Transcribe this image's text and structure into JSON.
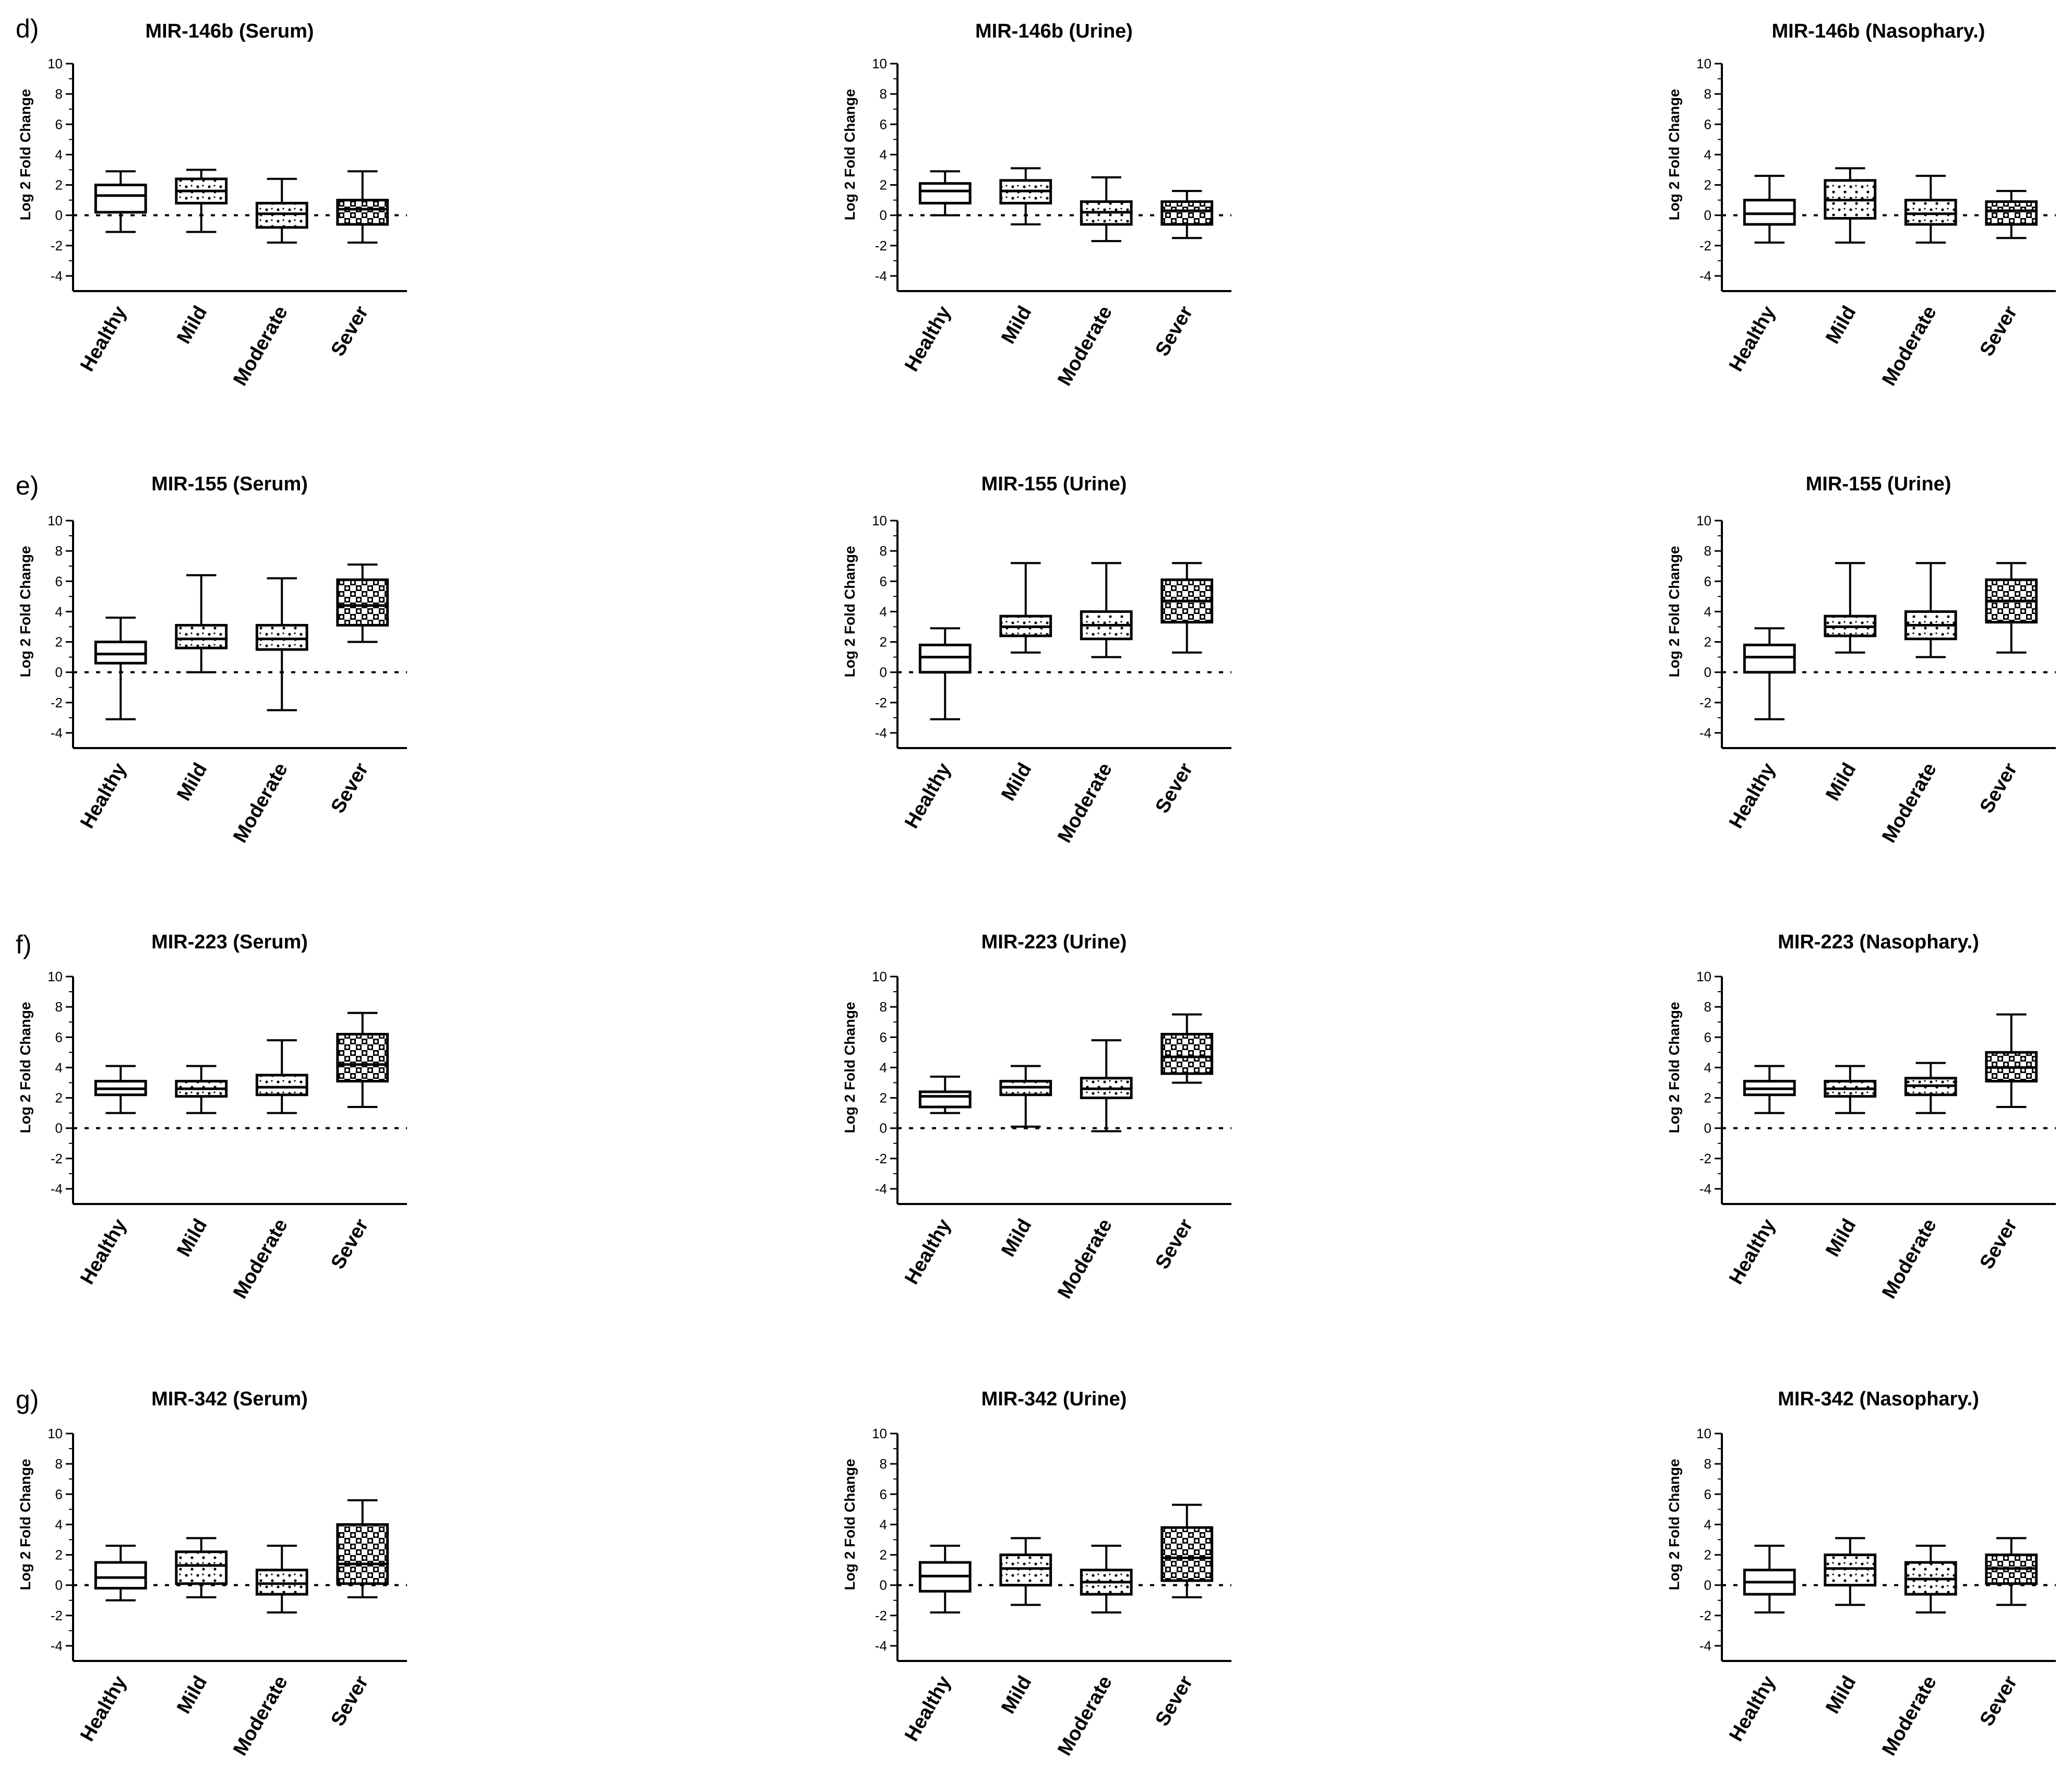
{
  "chart_data": [
    {
      "type": "box",
      "panel": "d)",
      "title": "MIR-146b (Serum)",
      "ylabel": "Log 2 Fold Change",
      "ylim": [
        -5,
        10
      ],
      "yticks": [
        10,
        8,
        6,
        4,
        2,
        0,
        -2,
        -4
      ],
      "refline": 0,
      "categories": [
        "Healthy",
        "Mild",
        "Moderate",
        "Sever"
      ],
      "patterns": [
        "plain",
        "dots",
        "dots",
        "checker"
      ],
      "boxes": [
        {
          "min": -1.1,
          "q1": 0.2,
          "median": 1.3,
          "q3": 2.0,
          "max": 2.9
        },
        {
          "min": -1.1,
          "q1": 0.8,
          "median": 1.6,
          "q3": 2.4,
          "max": 3.0
        },
        {
          "min": -1.8,
          "q1": -0.8,
          "median": 0.1,
          "q3": 0.8,
          "max": 2.4
        },
        {
          "min": -1.8,
          "q1": -0.6,
          "median": 0.4,
          "q3": 1.0,
          "max": 2.9
        }
      ]
    },
    {
      "type": "box",
      "panel": "",
      "title": "MIR-146b (Urine)",
      "ylabel": "Log 2 Fold Change",
      "ylim": [
        -5,
        10
      ],
      "yticks": [
        10,
        8,
        6,
        4,
        2,
        0,
        -2,
        -4
      ],
      "refline": 0,
      "categories": [
        "Healthy",
        "Mild",
        "Moderate",
        "Sever"
      ],
      "patterns": [
        "plain",
        "dots",
        "dots",
        "checker"
      ],
      "boxes": [
        {
          "min": 0.0,
          "q1": 0.8,
          "median": 1.6,
          "q3": 2.1,
          "max": 2.9
        },
        {
          "min": -0.6,
          "q1": 0.8,
          "median": 1.6,
          "q3": 2.3,
          "max": 3.1
        },
        {
          "min": -1.7,
          "q1": -0.6,
          "median": 0.2,
          "q3": 0.9,
          "max": 2.5
        },
        {
          "min": -1.5,
          "q1": -0.6,
          "median": 0.3,
          "q3": 0.9,
          "max": 1.6
        }
      ]
    },
    {
      "type": "box",
      "panel": "",
      "title": "MIR-146b (Nasophary.)",
      "ylabel": "Log 2 Fold Change",
      "ylim": [
        -5,
        10
      ],
      "yticks": [
        10,
        8,
        6,
        4,
        2,
        0,
        -2,
        -4
      ],
      "refline": 0,
      "categories": [
        "Healthy",
        "Mild",
        "Moderate",
        "Sever"
      ],
      "patterns": [
        "plain",
        "dots",
        "dots",
        "checker"
      ],
      "boxes": [
        {
          "min": -1.8,
          "q1": -0.6,
          "median": 0.1,
          "q3": 1.0,
          "max": 2.6
        },
        {
          "min": -1.8,
          "q1": -0.2,
          "median": 1.0,
          "q3": 2.3,
          "max": 3.1
        },
        {
          "min": -1.8,
          "q1": -0.6,
          "median": 0.1,
          "q3": 1.0,
          "max": 2.6
        },
        {
          "min": -1.5,
          "q1": -0.6,
          "median": 0.3,
          "q3": 0.9,
          "max": 1.6
        }
      ]
    },
    {
      "type": "box",
      "panel": "e)",
      "title": "MIR-155 (Serum)",
      "ylabel": "Log 2 Fold Change",
      "ylim": [
        -5,
        10
      ],
      "yticks": [
        10,
        8,
        6,
        4,
        2,
        0,
        -2,
        -4
      ],
      "refline": 0,
      "categories": [
        "Healthy",
        "Mild",
        "Moderate",
        "Sever"
      ],
      "patterns": [
        "plain",
        "dots",
        "dots",
        "checker"
      ],
      "boxes": [
        {
          "min": -3.1,
          "q1": 0.6,
          "median": 1.2,
          "q3": 2.0,
          "max": 3.6
        },
        {
          "min": 0.0,
          "q1": 1.6,
          "median": 2.2,
          "q3": 3.1,
          "max": 6.4
        },
        {
          "min": -2.5,
          "q1": 1.5,
          "median": 2.2,
          "q3": 3.1,
          "max": 6.2
        },
        {
          "min": 2.0,
          "q1": 3.1,
          "median": 4.4,
          "q3": 6.1,
          "max": 7.1
        }
      ]
    },
    {
      "type": "box",
      "panel": "",
      "title": "MIR-155 (Urine)",
      "ylabel": "Log 2 Fold Change",
      "ylim": [
        -5,
        10
      ],
      "yticks": [
        10,
        8,
        6,
        4,
        2,
        0,
        -2,
        -4
      ],
      "refline": 0,
      "categories": [
        "Healthy",
        "Mild",
        "Moderate",
        "Sever"
      ],
      "patterns": [
        "plain",
        "dots",
        "dots",
        "checker"
      ],
      "boxes": [
        {
          "min": -3.1,
          "q1": 0.0,
          "median": 1.0,
          "q3": 1.8,
          "max": 2.9
        },
        {
          "min": 1.3,
          "q1": 2.4,
          "median": 3.0,
          "q3": 3.7,
          "max": 7.2
        },
        {
          "min": 1.0,
          "q1": 2.2,
          "median": 3.1,
          "q3": 4.0,
          "max": 7.2
        },
        {
          "min": 1.3,
          "q1": 3.3,
          "median": 4.7,
          "q3": 6.1,
          "max": 7.2
        }
      ]
    },
    {
      "type": "box",
      "panel": "",
      "title": "MIR-155 (Urine)",
      "ylabel": "Log 2 Fold Change",
      "ylim": [
        -5,
        10
      ],
      "yticks": [
        10,
        8,
        6,
        4,
        2,
        0,
        -2,
        -4
      ],
      "refline": 0,
      "categories": [
        "Healthy",
        "Mild",
        "Moderate",
        "Sever"
      ],
      "patterns": [
        "plain",
        "dots",
        "dots",
        "checker"
      ],
      "boxes": [
        {
          "min": -3.1,
          "q1": 0.0,
          "median": 1.0,
          "q3": 1.8,
          "max": 2.9
        },
        {
          "min": 1.3,
          "q1": 2.4,
          "median": 3.0,
          "q3": 3.7,
          "max": 7.2
        },
        {
          "min": 1.0,
          "q1": 2.2,
          "median": 3.1,
          "q3": 4.0,
          "max": 7.2
        },
        {
          "min": 1.3,
          "q1": 3.3,
          "median": 4.7,
          "q3": 6.1,
          "max": 7.2
        }
      ]
    },
    {
      "type": "box",
      "panel": "f)",
      "title": "MIR-223 (Serum)",
      "ylabel": "Log 2 Fold Change",
      "ylim": [
        -5,
        10
      ],
      "yticks": [
        10,
        8,
        6,
        4,
        2,
        0,
        -2,
        -4
      ],
      "refline": 0,
      "categories": [
        "Healthy",
        "Mild",
        "Moderate",
        "Sever"
      ],
      "patterns": [
        "plain",
        "dots",
        "dots",
        "checker"
      ],
      "boxes": [
        {
          "min": 1.0,
          "q1": 2.2,
          "median": 2.6,
          "q3": 3.1,
          "max": 4.1
        },
        {
          "min": 1.0,
          "q1": 2.1,
          "median": 2.6,
          "q3": 3.1,
          "max": 4.1
        },
        {
          "min": 1.0,
          "q1": 2.2,
          "median": 2.7,
          "q3": 3.5,
          "max": 5.8
        },
        {
          "min": 1.4,
          "q1": 3.1,
          "median": 4.2,
          "q3": 6.2,
          "max": 7.6
        }
      ]
    },
    {
      "type": "box",
      "panel": "",
      "title": "MIR-223 (Urine)",
      "ylabel": "Log 2 Fold Change",
      "ylim": [
        -5,
        10
      ],
      "yticks": [
        10,
        8,
        6,
        4,
        2,
        0,
        -2,
        -4
      ],
      "refline": 0,
      "categories": [
        "Healthy",
        "Mild",
        "Moderate",
        "Sever"
      ],
      "patterns": [
        "plain",
        "dots",
        "dots",
        "checker"
      ],
      "boxes": [
        {
          "min": 1.0,
          "q1": 1.4,
          "median": 2.1,
          "q3": 2.4,
          "max": 3.4
        },
        {
          "min": 0.1,
          "q1": 2.2,
          "median": 2.7,
          "q3": 3.1,
          "max": 4.1
        },
        {
          "min": -0.2,
          "q1": 2.0,
          "median": 2.6,
          "q3": 3.3,
          "max": 5.8
        },
        {
          "min": 3.0,
          "q1": 3.6,
          "median": 4.7,
          "q3": 6.2,
          "max": 7.5
        }
      ]
    },
    {
      "type": "box",
      "panel": "",
      "title": "MIR-223 (Nasophary.)",
      "ylabel": "Log 2 Fold Change",
      "ylim": [
        -5,
        10
      ],
      "yticks": [
        10,
        8,
        6,
        4,
        2,
        0,
        -2,
        -4
      ],
      "refline": 0,
      "categories": [
        "Healthy",
        "Mild",
        "Moderate",
        "Sever"
      ],
      "patterns": [
        "plain",
        "dots",
        "dots",
        "checker"
      ],
      "boxes": [
        {
          "min": 1.0,
          "q1": 2.2,
          "median": 2.6,
          "q3": 3.1,
          "max": 4.1
        },
        {
          "min": 1.0,
          "q1": 2.1,
          "median": 2.6,
          "q3": 3.1,
          "max": 4.1
        },
        {
          "min": 1.0,
          "q1": 2.2,
          "median": 2.8,
          "q3": 3.3,
          "max": 4.3
        },
        {
          "min": 1.4,
          "q1": 3.1,
          "median": 4.0,
          "q3": 5.0,
          "max": 7.5
        }
      ]
    },
    {
      "type": "box",
      "panel": "g)",
      "title": "MIR-342 (Serum)",
      "ylabel": "Log 2 Fold Change",
      "ylim": [
        -5,
        10
      ],
      "yticks": [
        10,
        8,
        6,
        4,
        2,
        0,
        -2,
        -4
      ],
      "refline": 0,
      "categories": [
        "Healthy",
        "Mild",
        "Moderate",
        "Sever"
      ],
      "patterns": [
        "plain",
        "dots",
        "dots",
        "checker"
      ],
      "boxes": [
        {
          "min": -1.0,
          "q1": -0.2,
          "median": 0.5,
          "q3": 1.5,
          "max": 2.6
        },
        {
          "min": -0.8,
          "q1": 0.1,
          "median": 1.3,
          "q3": 2.2,
          "max": 3.1
        },
        {
          "min": -1.8,
          "q1": -0.6,
          "median": 0.1,
          "q3": 1.0,
          "max": 2.6
        },
        {
          "min": -0.8,
          "q1": 0.1,
          "median": 1.4,
          "q3": 4.0,
          "max": 5.6
        }
      ]
    },
    {
      "type": "box",
      "panel": "",
      "title": "MIR-342 (Urine)",
      "ylabel": "Log 2 Fold Change",
      "ylim": [
        -5,
        10
      ],
      "yticks": [
        10,
        8,
        6,
        4,
        2,
        0,
        -2,
        -4
      ],
      "refline": 0,
      "categories": [
        "Healthy",
        "Mild",
        "Moderate",
        "Sever"
      ],
      "patterns": [
        "plain",
        "dots",
        "dots",
        "checker"
      ],
      "boxes": [
        {
          "min": -1.8,
          "q1": -0.4,
          "median": 0.6,
          "q3": 1.5,
          "max": 2.6
        },
        {
          "min": -1.3,
          "q1": 0.0,
          "median": 1.1,
          "q3": 2.0,
          "max": 3.1
        },
        {
          "min": -1.8,
          "q1": -0.6,
          "median": 0.2,
          "q3": 1.0,
          "max": 2.6
        },
        {
          "min": -0.8,
          "q1": 0.3,
          "median": 1.8,
          "q3": 3.8,
          "max": 5.3
        }
      ]
    },
    {
      "type": "box",
      "panel": "",
      "title": "MIR-342 (Nasophary.)",
      "ylabel": "Log 2 Fold Change",
      "ylim": [
        -5,
        10
      ],
      "yticks": [
        10,
        8,
        6,
        4,
        2,
        0,
        -2,
        -4
      ],
      "refline": 0,
      "categories": [
        "Healthy",
        "Mild",
        "Moderate",
        "Sever"
      ],
      "patterns": [
        "plain",
        "dots",
        "dots",
        "checker"
      ],
      "boxes": [
        {
          "min": -1.8,
          "q1": -0.6,
          "median": 0.2,
          "q3": 1.0,
          "max": 2.6
        },
        {
          "min": -1.3,
          "q1": 0.0,
          "median": 1.1,
          "q3": 2.0,
          "max": 3.1
        },
        {
          "min": -1.8,
          "q1": -0.6,
          "median": 0.4,
          "q3": 1.5,
          "max": 2.6
        },
        {
          "min": -1.3,
          "q1": 0.1,
          "median": 1.1,
          "q3": 2.0,
          "max": 3.1
        }
      ]
    }
  ]
}
